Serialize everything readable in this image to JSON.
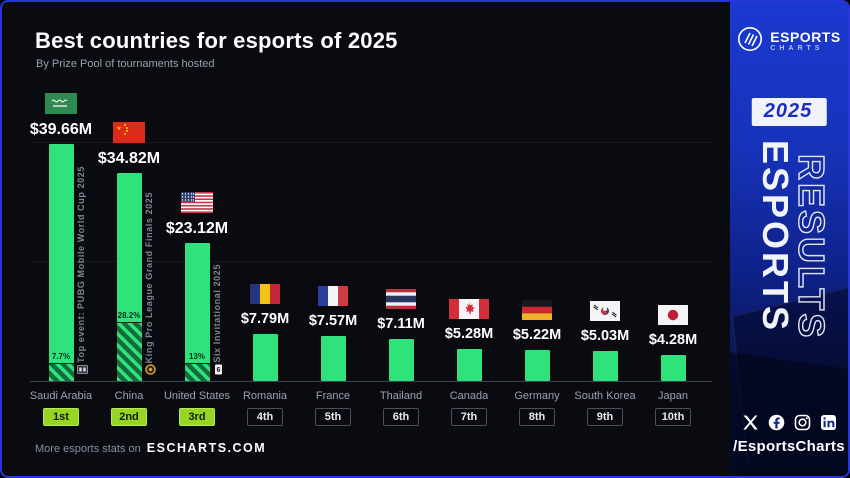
{
  "frame": {
    "border_color": "#2737d8",
    "background": "#090b10"
  },
  "header": {
    "title": "Best countries for esports of 2025",
    "subtitle": "By Prize Pool of tournaments hosted"
  },
  "footer": {
    "prefix": "More esports stats on",
    "site": "ESCHARTS.COM"
  },
  "sidebar": {
    "logo": {
      "icon": "escharts-logo-icon",
      "title": "ESPORTS",
      "subtitle": "CHARTS"
    },
    "year_badge": "2025",
    "vertical_text_solid": "ESPORTS",
    "vertical_text_outline": "RESULTS",
    "social_icons": [
      "x-icon",
      "facebook-icon",
      "instagram-icon",
      "linkedin-icon"
    ],
    "handle": "/EsportsCharts"
  },
  "chart_data": {
    "type": "bar",
    "title": "Best countries for esports of 2025",
    "subtitle": "By Prize Pool of tournaments hosted",
    "unit": "million USD",
    "ylim": [
      0,
      42
    ],
    "gridline_values": [
      20,
      40
    ],
    "grid": "on",
    "legend_position": "none",
    "bar_color": "#2fe27c",
    "hatch_dark_color": "#156b3d",
    "rank_badge_color": "#97d525",
    "categories": [
      "Saudi Arabia",
      "China",
      "United States",
      "Romania",
      "France",
      "Thailand",
      "Canada",
      "Germany",
      "South Korea",
      "Japan"
    ],
    "values": [
      39.66,
      34.82,
      23.12,
      7.79,
      7.57,
      7.11,
      5.28,
      5.22,
      5.03,
      4.28
    ],
    "value_labels": [
      "$39.66M",
      "$34.82M",
      "$23.12M",
      "$7.79M",
      "$7.57M",
      "$7.11M",
      "$5.28M",
      "$5.22M",
      "$5.03M",
      "$4.28M"
    ],
    "ranks": [
      "1st",
      "2nd",
      "3rd",
      "4th",
      "5th",
      "6th",
      "7th",
      "8th",
      "9th",
      "10th"
    ],
    "podium_count": 3,
    "flags": [
      "flag-saudi-arabia-icon",
      "flag-china-icon",
      "flag-united-states-icon",
      "flag-romania-icon",
      "flag-france-icon",
      "flag-thailand-icon",
      "flag-canada-icon",
      "flag-germany-icon",
      "flag-south-korea-icon",
      "flag-japan-icon"
    ],
    "top_events": [
      {
        "country": "Saudi Arabia",
        "label": "Top event: PUBG Mobile World Cup 2025",
        "share_label": "7.7%",
        "share_pct": 7.7,
        "game_icon": "pubg-mobile-icon"
      },
      {
        "country": "China",
        "label": "King Pro League Grand Finals 2025",
        "share_label": "28.2%",
        "share_pct": 28.2,
        "game_icon": "king-pro-league-icon"
      },
      {
        "country": "United States",
        "label": "Six Invitational 2025",
        "share_label": "13%",
        "share_pct": 13,
        "game_icon": "six-invitational-icon"
      }
    ]
  }
}
